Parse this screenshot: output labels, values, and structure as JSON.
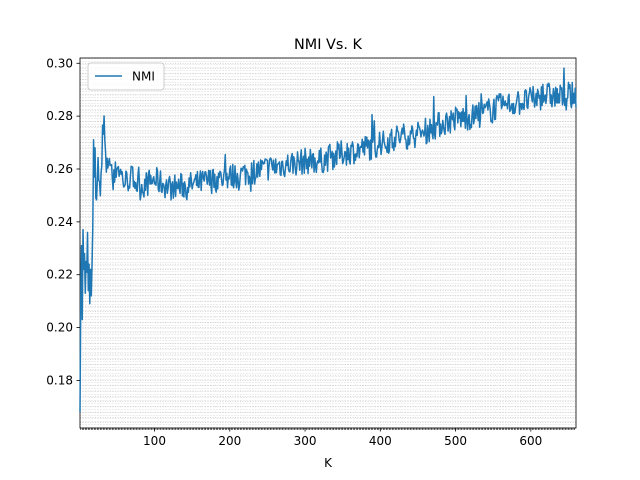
{
  "chart_data": {
    "type": "line",
    "title": "NMI Vs. K",
    "xlabel": "K",
    "ylabel": "",
    "xlim": [
      1,
      660
    ],
    "ylim": [
      0.162,
      0.302
    ],
    "xticks": [
      100,
      200,
      300,
      400,
      500,
      600
    ],
    "yticks": [
      0.18,
      0.2,
      0.22,
      0.24,
      0.26,
      0.28,
      0.3
    ],
    "ytick_labels": [
      "0.18",
      "0.20",
      "0.22",
      "0.24",
      "0.26",
      "0.28",
      "0.30"
    ],
    "grid": "minor, dotted, gray",
    "legend_position": "upper-left",
    "line_color": "#1f77b4",
    "series": [
      {
        "name": "NMI",
        "anchors": [
          [
            1,
            0.168
          ],
          [
            2,
            0.21
          ],
          [
            3,
            0.231
          ],
          [
            4,
            0.203
          ],
          [
            5,
            0.237
          ],
          [
            6,
            0.222
          ],
          [
            7,
            0.228
          ],
          [
            8,
            0.213
          ],
          [
            9,
            0.225
          ],
          [
            10,
            0.221
          ],
          [
            11,
            0.236
          ],
          [
            12,
            0.214
          ],
          [
            13,
            0.224
          ],
          [
            14,
            0.209
          ],
          [
            15,
            0.222
          ],
          [
            16,
            0.212
          ],
          [
            17,
            0.224
          ],
          [
            18,
            0.238
          ],
          [
            19,
            0.271
          ],
          [
            20,
            0.257
          ],
          [
            21,
            0.268
          ],
          [
            22,
            0.249
          ],
          [
            25,
            0.262
          ],
          [
            28,
            0.248
          ],
          [
            31,
            0.27
          ],
          [
            33,
            0.277
          ],
          [
            36,
            0.258
          ],
          [
            40,
            0.266
          ],
          [
            45,
            0.253
          ],
          [
            50,
            0.262
          ],
          [
            60,
            0.255
          ],
          [
            70,
            0.257
          ],
          [
            80,
            0.253
          ],
          [
            100,
            0.256
          ],
          [
            120,
            0.253
          ],
          [
            150,
            0.254
          ],
          [
            180,
            0.256
          ],
          [
            200,
            0.257
          ],
          [
            230,
            0.259
          ],
          [
            260,
            0.261
          ],
          [
            300,
            0.263
          ],
          [
            320,
            0.263
          ],
          [
            350,
            0.266
          ],
          [
            380,
            0.268
          ],
          [
            400,
            0.269
          ],
          [
            420,
            0.272
          ],
          [
            450,
            0.273
          ],
          [
            480,
            0.277
          ],
          [
            500,
            0.279
          ],
          [
            530,
            0.28
          ],
          [
            550,
            0.283
          ],
          [
            580,
            0.285
          ],
          [
            600,
            0.286
          ],
          [
            620,
            0.288
          ],
          [
            640,
            0.287
          ],
          [
            660,
            0.288
          ]
        ],
        "noise_amplitude": 0.005,
        "seed": 7
      }
    ]
  },
  "legend": {
    "label": "NMI"
  }
}
